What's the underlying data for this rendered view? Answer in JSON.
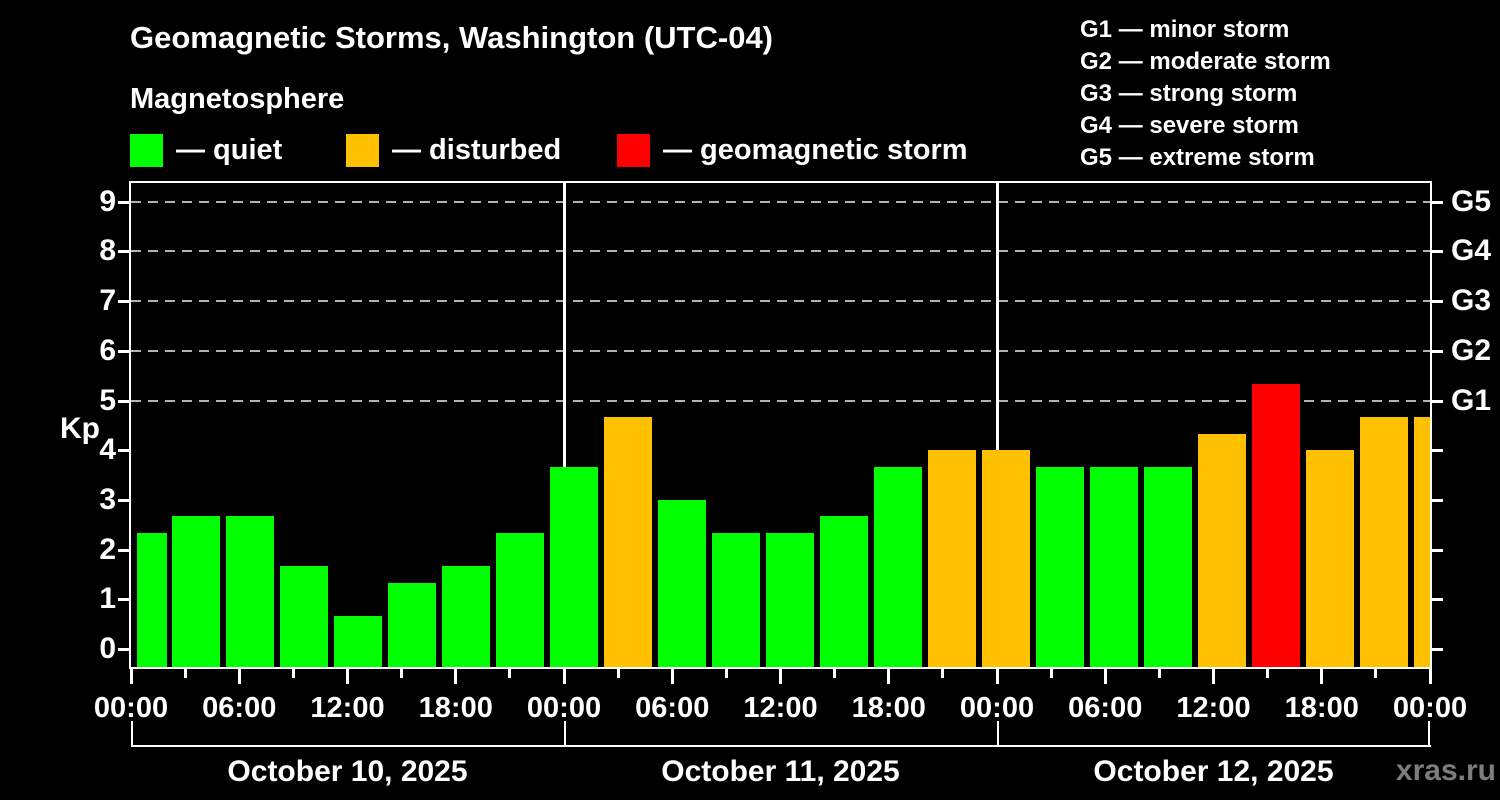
{
  "header": {
    "title": "Geomagnetic Storms, Washington (UTC-04)",
    "subtitle": "Magnetosphere",
    "legend": [
      {
        "name": "quiet",
        "label": "— quiet",
        "color": "#00ff00"
      },
      {
        "name": "disturbed",
        "label": "— disturbed",
        "color": "#ffc000"
      },
      {
        "name": "geomagnetic-storm",
        "label": "— geomagnetic storm",
        "color": "#ff0000"
      }
    ],
    "storm_scale": [
      "G1 — minor storm",
      "G2 — moderate storm",
      "G3 — strong storm",
      "G4 — severe storm",
      "G5 — extreme storm"
    ]
  },
  "watermark": "xras.ru",
  "chart_data": {
    "type": "bar",
    "title": "Geomagnetic Storms, Washington (UTC-04)",
    "subtitle": "Magnetosphere",
    "ylabel": "Kp",
    "ylim": [
      -0.4,
      9.4
    ],
    "yticks": [
      0,
      1,
      2,
      3,
      4,
      5,
      6,
      7,
      8,
      9
    ],
    "grid_levels": [
      5,
      6,
      7,
      8,
      9
    ],
    "grid_style": "dashed",
    "legend_position": "top-left",
    "right_axis": [
      {
        "level": 5,
        "label": "G1"
      },
      {
        "level": 6,
        "label": "G2"
      },
      {
        "level": 7,
        "label": "G3"
      },
      {
        "level": 8,
        "label": "G4"
      },
      {
        "level": 9,
        "label": "G5"
      }
    ],
    "x_time_labels": [
      "00:00",
      "06:00",
      "12:00",
      "18:00",
      "00:00",
      "06:00",
      "12:00",
      "18:00",
      "00:00",
      "06:00",
      "12:00",
      "18:00",
      "00:00"
    ],
    "bar_interval_hours": 3,
    "days": [
      {
        "date": "October 10, 2025",
        "kp": [
          2.33,
          2.67,
          2.67,
          1.67,
          0.67,
          1.33,
          1.67,
          2.33
        ]
      },
      {
        "date": "October 11, 2025",
        "kp": [
          3.67,
          4.67,
          3.0,
          2.33,
          2.33,
          2.67,
          3.67,
          4.0
        ]
      },
      {
        "date": "October 12, 2025",
        "kp": [
          4.0,
          3.67,
          3.67,
          3.67,
          4.33,
          5.33,
          4.0,
          4.67
        ]
      }
    ],
    "next_day_partial_kp": 4.67,
    "colors": {
      "quiet": "#00ff00",
      "disturbed": "#ffc000",
      "storm": "#ff0000"
    },
    "thresholds": {
      "disturbed_min": 4,
      "storm_min": 5
    }
  }
}
